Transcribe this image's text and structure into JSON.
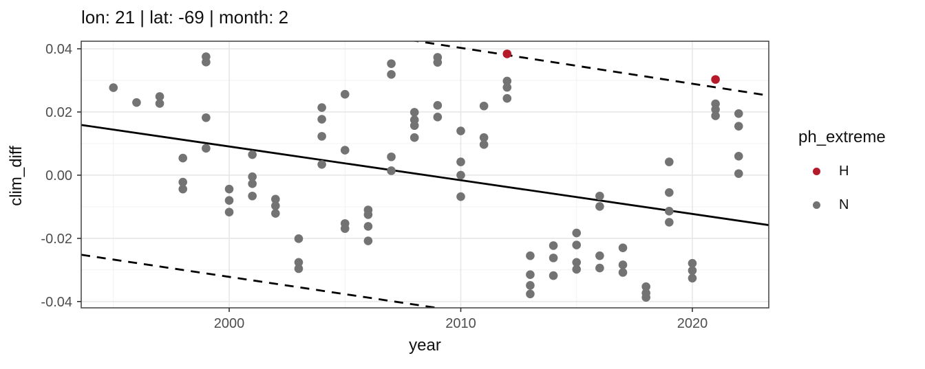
{
  "chart_data": {
    "type": "scatter",
    "title": "lon: 21 | lat: -69 | month: 2",
    "xlabel": "year",
    "ylabel": "clim_diff",
    "xlim": [
      1993.61,
      2023.3
    ],
    "ylim": [
      -0.042,
      0.0424
    ],
    "grid": "on",
    "x_major_ticks": [
      2000,
      2010,
      2020
    ],
    "x_tick_labels": [
      "2000",
      "2010",
      "2020"
    ],
    "x_minor_gridlines": [
      1995,
      2005,
      2015
    ],
    "y_major_ticks": [
      0.04,
      0.02,
      0.0,
      -0.02,
      -0.04
    ],
    "y_tick_labels": [
      "0.04",
      "0.02",
      "0.00",
      "-0.02",
      "-0.04"
    ],
    "y_minor_gridlines": [
      0.03,
      0.01,
      -0.01,
      -0.03
    ],
    "series": [
      {
        "name": "H",
        "color": "#B51A2B",
        "points": [
          [
            2012,
            0.0384
          ],
          [
            2021,
            0.0303
          ]
        ]
      },
      {
        "name": "N",
        "color": "#737373",
        "points": [
          [
            1995,
            0.0277
          ],
          [
            1996,
            0.023
          ],
          [
            1997,
            0.0249
          ],
          [
            1997,
            0.0227
          ],
          [
            1998,
            0.0054
          ],
          [
            1998,
            -0.0022
          ],
          [
            1998,
            -0.0044
          ],
          [
            1999,
            0.0375
          ],
          [
            1999,
            0.0358
          ],
          [
            1999,
            0.0182
          ],
          [
            1999,
            0.0085
          ],
          [
            2000,
            -0.0044
          ],
          [
            2000,
            -0.008
          ],
          [
            2000,
            -0.0117
          ],
          [
            2001,
            0.0065
          ],
          [
            2001,
            -0.0005
          ],
          [
            2001,
            -0.0027
          ],
          [
            2001,
            -0.0066
          ],
          [
            2002,
            -0.0076
          ],
          [
            2002,
            -0.0097
          ],
          [
            2002,
            -0.0121
          ],
          [
            2003,
            -0.0201
          ],
          [
            2003,
            -0.0276
          ],
          [
            2003,
            -0.0296
          ],
          [
            2004,
            0.0214
          ],
          [
            2004,
            0.0177
          ],
          [
            2004,
            0.0123
          ],
          [
            2004,
            0.0034
          ],
          [
            2005,
            0.0256
          ],
          [
            2005,
            0.0079
          ],
          [
            2005,
            -0.0153
          ],
          [
            2005,
            -0.0169
          ],
          [
            2006,
            -0.011
          ],
          [
            2006,
            -0.0125
          ],
          [
            2006,
            -0.0162
          ],
          [
            2006,
            -0.0208
          ],
          [
            2007,
            0.0353
          ],
          [
            2007,
            0.0319
          ],
          [
            2007,
            0.0058
          ],
          [
            2007,
            0.0014
          ],
          [
            2008,
            0.0199
          ],
          [
            2008,
            0.0175
          ],
          [
            2008,
            0.0157
          ],
          [
            2008,
            0.0119
          ],
          [
            2009,
            0.0373
          ],
          [
            2009,
            0.0357
          ],
          [
            2009,
            0.0221
          ],
          [
            2009,
            0.0184
          ],
          [
            2010,
            0.014
          ],
          [
            2010,
            0.0042
          ],
          [
            2010,
            0.0
          ],
          [
            2010,
            -0.0068
          ],
          [
            2011,
            0.0219
          ],
          [
            2011,
            0.0119
          ],
          [
            2011,
            0.0097
          ],
          [
            2012,
            0.0298
          ],
          [
            2012,
            0.0278
          ],
          [
            2012,
            0.0243
          ],
          [
            2013,
            -0.0255
          ],
          [
            2013,
            -0.0315
          ],
          [
            2013,
            -0.0349
          ],
          [
            2013,
            -0.0376
          ],
          [
            2014,
            -0.0223
          ],
          [
            2014,
            -0.0262
          ],
          [
            2014,
            -0.0318
          ],
          [
            2015,
            -0.0183
          ],
          [
            2015,
            -0.0221
          ],
          [
            2015,
            -0.0276
          ],
          [
            2015,
            -0.0298
          ],
          [
            2016,
            -0.0066
          ],
          [
            2016,
            -0.0099
          ],
          [
            2016,
            -0.0255
          ],
          [
            2016,
            -0.0294
          ],
          [
            2017,
            -0.023
          ],
          [
            2017,
            -0.0284
          ],
          [
            2017,
            -0.0308
          ],
          [
            2018,
            -0.0353
          ],
          [
            2018,
            -0.0373
          ],
          [
            2018,
            -0.0387
          ],
          [
            2019,
            0.0042
          ],
          [
            2019,
            -0.0055
          ],
          [
            2019,
            -0.0114
          ],
          [
            2019,
            -0.0149
          ],
          [
            2020,
            -0.0279
          ],
          [
            2020,
            -0.0302
          ],
          [
            2020,
            -0.0326
          ],
          [
            2021,
            0.0226
          ],
          [
            2021,
            0.0208
          ],
          [
            2021,
            0.0188
          ],
          [
            2022,
            0.0195
          ],
          [
            2022,
            0.0155
          ],
          [
            2022,
            0.006
          ],
          [
            2022,
            0.0005
          ]
        ]
      }
    ],
    "trend_lines": [
      {
        "style": "solid",
        "x1": 1993.61,
        "y1": 0.0159,
        "x2": 2023.3,
        "y2": -0.0158
      },
      {
        "style": "dashed",
        "x1": 1993.61,
        "y1": 0.0589,
        "x2": 2023.3,
        "y2": 0.0252
      },
      {
        "style": "dashed",
        "x1": 1993.61,
        "y1": -0.0252,
        "x2": 2023.3,
        "y2": -0.0577
      }
    ],
    "legend": {
      "title": "ph_extreme",
      "position": "right",
      "items": [
        {
          "label": "H",
          "color": "#B51A2B"
        },
        {
          "label": "N",
          "color": "#737373"
        }
      ]
    },
    "colors": {
      "panel_border": "#4a4a4a",
      "grid_major": "#e4e4e4",
      "grid_minor": "#f0f0f0",
      "tick_label": "#4d4d4d",
      "trend_line": "#000000"
    }
  }
}
